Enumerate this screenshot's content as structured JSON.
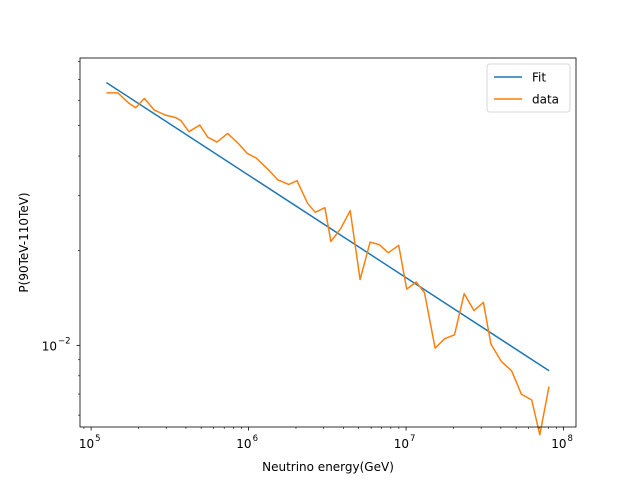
{
  "chart_data": {
    "type": "line",
    "title": "",
    "xlabel": "Neutrino energy(GeV)",
    "ylabel": "P(90TeV-110TeV)",
    "x_scale": "log",
    "y_scale": "log",
    "xlim": [
      85000,
      120000000
    ],
    "ylim": [
      0.0055,
      0.082
    ],
    "grid": false,
    "legend": "top-right",
    "x_ticks": [
      {
        "value": 100000,
        "base": "10",
        "exp": "5"
      },
      {
        "value": 1000000,
        "base": "10",
        "exp": "6"
      },
      {
        "value": 10000000,
        "base": "10",
        "exp": "7"
      },
      {
        "value": 100000000,
        "base": "10",
        "exp": "8"
      }
    ],
    "y_ticks": [
      {
        "value": 0.01,
        "base": "10",
        "exp": "−2"
      }
    ],
    "series": [
      {
        "name": "Fit",
        "color": "#1f77b4",
        "x": [
          125000,
          81000000
        ],
        "y": [
          0.0685,
          0.0083
        ]
      },
      {
        "name": "data",
        "color": "#ff7f0e",
        "x": [
          125000,
          148000,
          173000,
          192000,
          218000,
          252000,
          295000,
          345000,
          372000,
          418000,
          490000,
          550000,
          630000,
          736000,
          855000,
          978000,
          1120000,
          1320000,
          1530000,
          1800000,
          2030000,
          2370000,
          2650000,
          3050000,
          3330000,
          3840000,
          4420000,
          5110000,
          5910000,
          6770000,
          7700000,
          8980000,
          10100000,
          11600000,
          13100000,
          15300000,
          17600000,
          20300000,
          23400000,
          27000000,
          31000000,
          34600000,
          40200000,
          46800000,
          53900000,
          62800000,
          70700000,
          80800000
        ],
        "y": [
          0.0635,
          0.0635,
          0.059,
          0.057,
          0.061,
          0.056,
          0.054,
          0.053,
          0.0518,
          0.0478,
          0.0502,
          0.0459,
          0.0443,
          0.0472,
          0.044,
          0.0408,
          0.0394,
          0.0364,
          0.0336,
          0.0325,
          0.0334,
          0.0283,
          0.0265,
          0.0274,
          0.0214,
          0.0235,
          0.0268,
          0.0162,
          0.0213,
          0.0209,
          0.0197,
          0.0208,
          0.0151,
          0.0159,
          0.0147,
          0.0098,
          0.0105,
          0.0108,
          0.0146,
          0.0129,
          0.0137,
          0.0101,
          0.0089,
          0.0083,
          0.007,
          0.0067,
          0.0052,
          0.0074
        ]
      }
    ]
  }
}
